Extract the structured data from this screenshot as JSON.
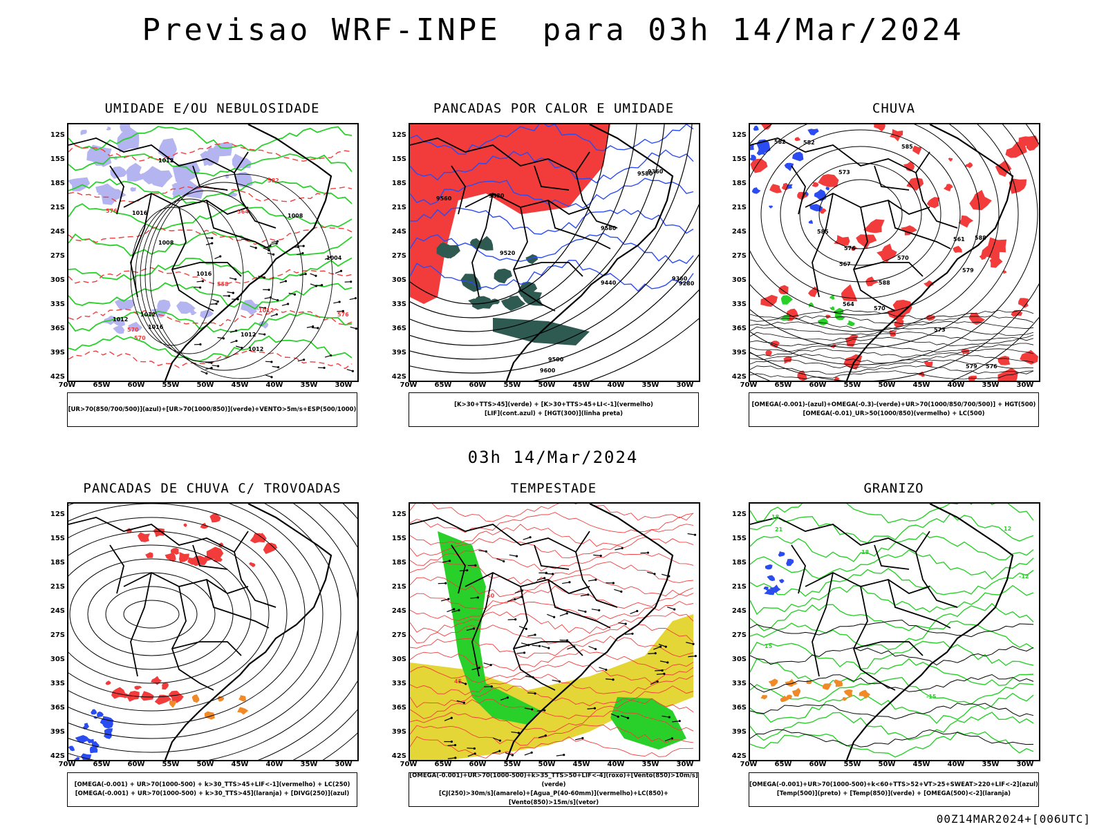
{
  "header": {
    "title": "Previsao WRF-INPE  para 03h 14/Mar/2024",
    "mid_title": "03h 14/Mar/2024",
    "footer": "00Z14MAR2024+[006UTC]"
  },
  "axes": {
    "lat_labels": [
      "12S",
      "15S",
      "18S",
      "21S",
      "24S",
      "27S",
      "30S",
      "33S",
      "36S",
      "39S",
      "42S"
    ],
    "lon_labels": [
      "70W",
      "65W",
      "60W",
      "55W",
      "50W",
      "45W",
      "40W",
      "35W",
      "30W"
    ]
  },
  "colors": {
    "red": "#f23c3c",
    "green": "#2ad02a",
    "blue": "#2a4cf0",
    "lavender": "#b4b4f0",
    "darkteal": "#2f5a52",
    "yellow": "#e3d636",
    "orange": "#f08a28"
  },
  "panels": [
    {
      "title": "UMIDADE E/OU NEBULOSIDADE",
      "legend": [
        "[UR>70(850/700/500)](azul)+[UR>70(1000/850)](verde)+VENTO>5m/s+ESP(500/1000)"
      ],
      "contour_labels": [
        "1012",
        "1012",
        "1012",
        "1016",
        "1008",
        "1012",
        "1004",
        "1008",
        "1016",
        "1016",
        "1012",
        "1012",
        "576",
        "570",
        "582",
        "564",
        "570",
        "558",
        "576"
      ]
    },
    {
      "title": "PANCADAS POR CALOR E UMIDADE",
      "legend": [
        "[K>30+TTS>45](verde) + [K>30+TTS>45+LI<-1](vermelho)",
        "[LIF](cont.azul) + [HGT(300)](linha preta)"
      ],
      "contour_labels": [
        "9560",
        "9580",
        "9580",
        "9500",
        "9580",
        "9600",
        "9440",
        "9520",
        "9360",
        "9280",
        "9360"
      ]
    },
    {
      "title": "CHUVA",
      "legend": [
        "[OMEGA(-0.001)-(azul)+OMEGA(-0.3)-(verde)+UR>70(1000/850/700/500)] + HGT(500)",
        "[OMEGA(-0.01)_UR>50(1000/850)(vermelho) + LC(500)"
      ],
      "contour_labels": [
        "588",
        "585",
        "582",
        "579",
        "576",
        "573",
        "570",
        "567",
        "564",
        "561",
        "588",
        "585",
        "582",
        "579",
        "576",
        "573",
        "570"
      ]
    },
    {
      "title": "PANCADAS DE CHUVA C/ TROVOADAS",
      "legend": [
        "[OMEGA(-0.001) + UR>70(1000-500) + k>30_TTS>45+LIF<-1](vermelho) + LC(250)",
        "[OMEGA(-0.001) + UR>70(1000-500) + k>30_TTS>45](laranja) + [DIVG(250)](azul)"
      ],
      "contour_labels": []
    },
    {
      "title": "TEMPESTADE",
      "legend": [
        "[OMEGA(-0.001)+UR>70(1000-500)+k>35_TTS>50+LIF<-4](roxo)+[Vento(850)>10m/s](verde)",
        "[CJ(250)>30m/s](amarelo)+[Agua_P(40-60mm)](vermelho)+LC(850)+[Vento(850)>15m/s](vetor)"
      ],
      "contour_labels": [
        "40",
        "45"
      ]
    },
    {
      "title": "GRANIZO",
      "legend": [
        "[OMEGA(-0.001)+UR>70(1000-500)+k<60+TTS>52+VT>25+SWEAT>220+LIF<-2](azul)",
        "[Temp(500)](preto) + [Temp(850)](verde) + [OMEGA(500)<-2](laranja)"
      ],
      "contour_labels": [
        "21",
        "18",
        "15",
        "12",
        "-12",
        "-15",
        "18"
      ]
    }
  ]
}
